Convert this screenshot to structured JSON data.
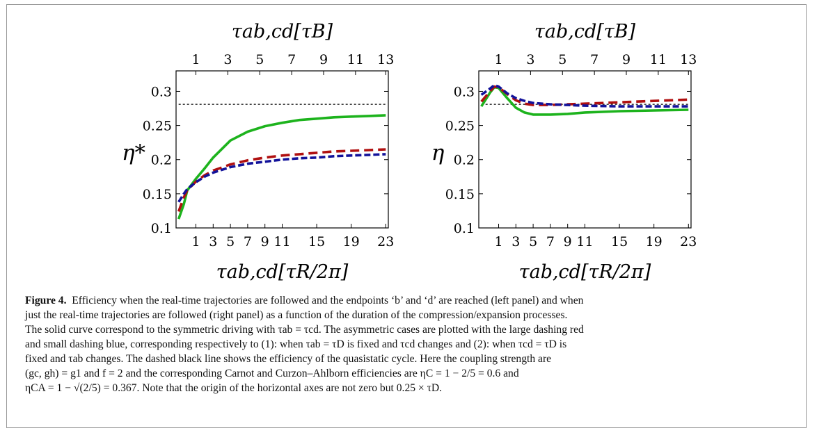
{
  "chart_data": [
    {
      "type": "line",
      "panel": "left",
      "ylabel": "η*",
      "top_xlabel": "τab,cd[τB]",
      "bottom_xlabel": "τab,cd[τR/2π]",
      "xlim": [
        -1.3,
        23.3
      ],
      "ylim": [
        0.1,
        0.33
      ],
      "top_ticks": [
        {
          "label": "1",
          "x": 1
        },
        {
          "label": "3",
          "x": 4.7
        },
        {
          "label": "5",
          "x": 8.4
        },
        {
          "label": "7",
          "x": 12.1
        },
        {
          "label": "9",
          "x": 15.8
        },
        {
          "label": "11",
          "x": 19.5
        },
        {
          "label": "13",
          "x": 23.0
        }
      ],
      "bottom_ticks": [
        "1",
        "3",
        "5",
        "7",
        "9",
        "11",
        "15",
        "19",
        "23"
      ],
      "yticks": [
        "0.1",
        "0.15",
        "0.2",
        "0.25",
        "0.3"
      ],
      "series": [
        {
          "style": "solid",
          "color": "#1db31d",
          "x": [
            -1,
            -0.4,
            0,
            1,
            2,
            3,
            5,
            7,
            9,
            11,
            13,
            15,
            17,
            19,
            21,
            23
          ],
          "y": [
            0.113,
            0.135,
            0.155,
            0.172,
            0.187,
            0.203,
            0.228,
            0.241,
            0.249,
            0.254,
            0.258,
            0.26,
            0.262,
            0.263,
            0.264,
            0.265
          ]
        },
        {
          "style": "dashed-large",
          "color": "#b01010",
          "x": [
            -1,
            -0.4,
            0,
            1,
            2,
            3,
            5,
            7,
            9,
            11,
            13,
            15,
            17,
            19,
            21,
            23
          ],
          "y": [
            0.124,
            0.145,
            0.155,
            0.168,
            0.177,
            0.184,
            0.193,
            0.199,
            0.203,
            0.206,
            0.208,
            0.21,
            0.212,
            0.213,
            0.214,
            0.215
          ]
        },
        {
          "style": "dashed-small",
          "color": "#12129a",
          "x": [
            -1,
            -0.4,
            0,
            1,
            2,
            3,
            5,
            7,
            9,
            11,
            13,
            15,
            17,
            19,
            21,
            23
          ],
          "y": [
            0.138,
            0.15,
            0.157,
            0.167,
            0.175,
            0.181,
            0.189,
            0.194,
            0.197,
            0.2,
            0.202,
            0.203,
            0.205,
            0.206,
            0.207,
            0.208
          ]
        },
        {
          "style": "dotted",
          "color": "#000000",
          "x": [
            -1,
            23
          ],
          "y": [
            0.281,
            0.281
          ]
        }
      ]
    },
    {
      "type": "line",
      "panel": "right",
      "ylabel": "η",
      "top_xlabel": "τab,cd[τB]",
      "bottom_xlabel": "τab,cd[τR/2π]",
      "xlim": [
        -1.3,
        23.3
      ],
      "ylim": [
        0.1,
        0.33
      ],
      "top_ticks": [
        {
          "label": "1",
          "x": 1
        },
        {
          "label": "3",
          "x": 4.7
        },
        {
          "label": "5",
          "x": 8.4
        },
        {
          "label": "7",
          "x": 12.1
        },
        {
          "label": "9",
          "x": 15.8
        },
        {
          "label": "11",
          "x": 19.5
        },
        {
          "label": "13",
          "x": 23.0
        }
      ],
      "bottom_ticks": [
        "1",
        "3",
        "5",
        "7",
        "9",
        "11",
        "15",
        "19",
        "23"
      ],
      "yticks": [
        "0.1",
        "0.15",
        "0.2",
        "0.25",
        "0.3"
      ],
      "series": [
        {
          "style": "solid",
          "color": "#1db31d",
          "x": [
            -1,
            0,
            0.5,
            1,
            2,
            3,
            4,
            5,
            7,
            9,
            11,
            15,
            19,
            23
          ],
          "y": [
            0.278,
            0.298,
            0.306,
            0.305,
            0.29,
            0.276,
            0.269,
            0.266,
            0.266,
            0.267,
            0.269,
            0.271,
            0.272,
            0.273
          ]
        },
        {
          "style": "dashed-large",
          "color": "#b01010",
          "x": [
            -1,
            0,
            0.5,
            1,
            2,
            3,
            4,
            5,
            7,
            9,
            11,
            15,
            19,
            23
          ],
          "y": [
            0.285,
            0.3,
            0.307,
            0.306,
            0.296,
            0.287,
            0.282,
            0.28,
            0.28,
            0.281,
            0.282,
            0.284,
            0.286,
            0.288
          ]
        },
        {
          "style": "dashed-small",
          "color": "#12129a",
          "x": [
            -1,
            0,
            0.5,
            1,
            2,
            3,
            4,
            5,
            7,
            9,
            11,
            15,
            19,
            23
          ],
          "y": [
            0.295,
            0.304,
            0.309,
            0.307,
            0.297,
            0.29,
            0.286,
            0.283,
            0.281,
            0.28,
            0.279,
            0.278,
            0.278,
            0.278
          ]
        },
        {
          "style": "dotted",
          "color": "#000000",
          "x": [
            -1,
            23
          ],
          "y": [
            0.281,
            0.281
          ]
        }
      ]
    }
  ],
  "caption": {
    "label": "Figure 4.",
    "lines": [
      "Efficiency when the real-time trajectories are followed and the endpoints ‘b’ and ‘d’ are reached (left panel) and when",
      "just the real-time trajectories are followed (right panel) as a function of the duration of the compression/expansion processes.",
      "The solid curve correspond to the symmetric driving with τab = τcd. The asymmetric cases are plotted with the large dashing red",
      "and small dashing blue, corresponding respectively to (1): when τab = τD is fixed and τcd changes and (2): when τcd = τD is",
      "fixed and τab changes. The dashed black line shows the efficiency of the quasistatic cycle. Here the coupling strength are",
      "(gc, gh) = g1 and f = 2 and the corresponding Carnot and Curzon–Ahlborn efficiencies are ηC = 1 − 2/5 = 0.6 and",
      "ηCA = 1 − √(2/5) = 0.367. Note that the origin of the horizontal axes are not zero but 0.25 × τD."
    ]
  }
}
